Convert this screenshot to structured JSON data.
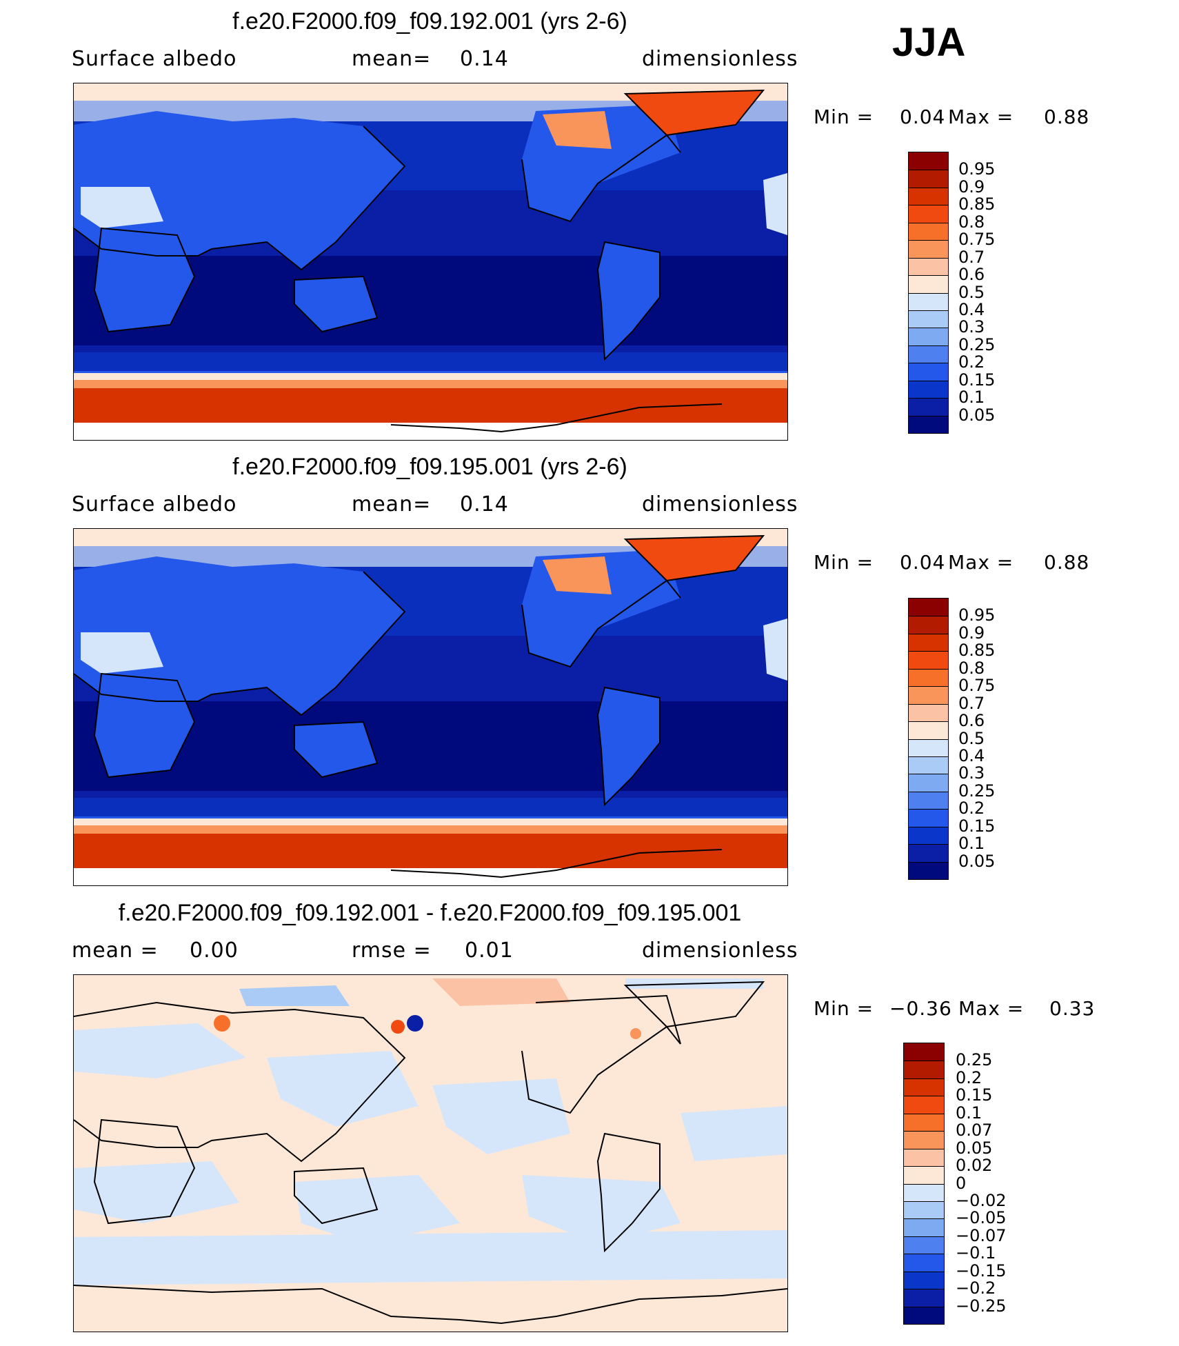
{
  "season": "JJA",
  "panels": [
    {
      "title": "f.e20.F2000.f09_f09.192.001 (yrs 2-6)",
      "subtitle_left": "Surface albedo",
      "subtitle_mid_label": "mean=",
      "subtitle_mid_value": "0.14",
      "subtitle_right": "dimensionless",
      "min_label": "Min =",
      "min_value": "0.04",
      "max_label": "Max =",
      "max_value": "0.88"
    },
    {
      "title": "f.e20.F2000.f09_f09.195.001 (yrs 2-6)",
      "subtitle_left": "Surface albedo",
      "subtitle_mid_label": "mean=",
      "subtitle_mid_value": "0.14",
      "subtitle_right": "dimensionless",
      "min_label": "Min =",
      "min_value": "0.04",
      "max_label": "Max =",
      "max_value": "0.88"
    },
    {
      "title": "f.e20.F2000.f09_f09.192.001 - f.e20.F2000.f09_f09.195.001",
      "subtitle_left_label": "mean =",
      "subtitle_left_value": "0.00",
      "subtitle_mid_label": "rmse =",
      "subtitle_mid_value": "0.01",
      "subtitle_right": "dimensionless",
      "min_label": "Min =",
      "min_value": "−0.36",
      "max_label": "Max =",
      "max_value": "0.33"
    }
  ],
  "colorbar_albedo": {
    "labels": [
      "0.95",
      "0.9",
      "0.85",
      "0.8",
      "0.75",
      "0.7",
      "0.6",
      "0.5",
      "0.4",
      "0.3",
      "0.25",
      "0.2",
      "0.15",
      "0.1",
      "0.05"
    ],
    "colors": [
      "#8b0000",
      "#b31b00",
      "#d63300",
      "#f04a10",
      "#f7702a",
      "#f9955a",
      "#fbc2a5",
      "#fde8d8",
      "#d6e6fa",
      "#aacbf5",
      "#7eaaf2",
      "#4f80f0",
      "#2458eb",
      "#0a36c9",
      "#0a1fa5",
      "#000a7d"
    ]
  },
  "colorbar_diff": {
    "labels": [
      "0.25",
      "0.2",
      "0.15",
      "0.1",
      "0.07",
      "0.05",
      "0.02",
      "0",
      "−0.02",
      "−0.05",
      "−0.07",
      "−0.1",
      "−0.15",
      "−0.2",
      "−0.25"
    ],
    "colors": [
      "#8b0000",
      "#b31b00",
      "#d63300",
      "#f04a10",
      "#f7702a",
      "#f9955a",
      "#fbc2a5",
      "#fde8d8",
      "#d6e6fa",
      "#aacbf5",
      "#7eaaf2",
      "#4f80f0",
      "#2458eb",
      "#0a36c9",
      "#0a1fa5",
      "#000a7d"
    ]
  }
}
